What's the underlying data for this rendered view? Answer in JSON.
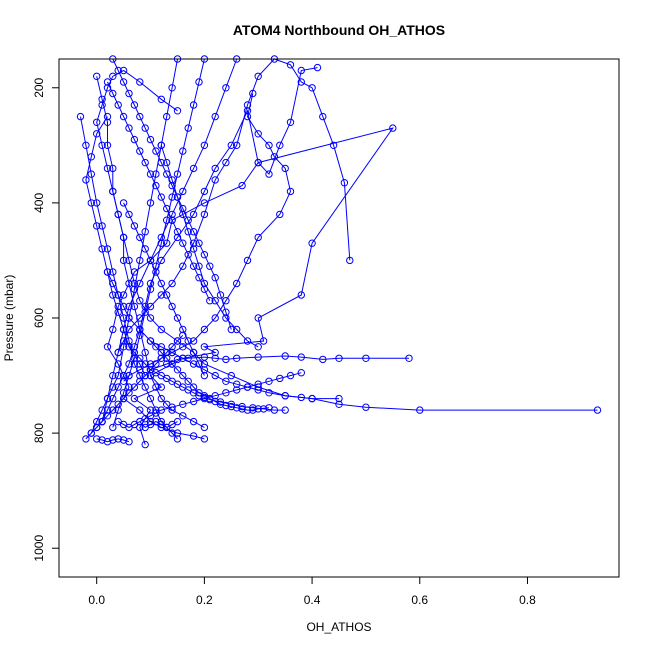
{
  "chart_data": {
    "type": "line",
    "title": "ATOM4 Northbound OH_ATHOS",
    "xlabel": "OH_ATHOS",
    "ylabel": "Pressure (mbar)",
    "xlim": [
      -0.07,
      0.97
    ],
    "ylim": [
      1050,
      150
    ],
    "y_reversed": true,
    "x_ticks": [
      0.0,
      0.2,
      0.4,
      0.6,
      0.8
    ],
    "x_tick_labels": [
      "0.0",
      "0.2",
      "0.4",
      "0.6",
      "0.8"
    ],
    "y_ticks": [
      200,
      400,
      600,
      800,
      1000
    ],
    "y_tick_labels": [
      "200",
      "400",
      "600",
      "800",
      "1000"
    ],
    "grid": false,
    "legend": "none",
    "series_color": "#0000ff",
    "marker": "open-circle",
    "series": [
      {
        "x": [
          0.09,
          0.08,
          0.1,
          0.07,
          0.12,
          0.1,
          0.14,
          0.16,
          0.22,
          0.2,
          0.31,
          0.3,
          0.38,
          0.4,
          0.55,
          0.3,
          0.27,
          0.2,
          0.14,
          0.13,
          0.1,
          0.07,
          0.05,
          0.04,
          0.03,
          0.02,
          0.04,
          0.05,
          0.06,
          0.05,
          0.08,
          0.1,
          0.12,
          0.15,
          0.18,
          0.2
        ],
        "y": [
          820,
          790,
          760,
          740,
          720,
          700,
          680,
          670,
          660,
          650,
          640,
          600,
          560,
          470,
          270,
          330,
          370,
          400,
          430,
          470,
          500,
          520,
          560,
          580,
          620,
          650,
          680,
          700,
          720,
          740,
          760,
          780,
          790,
          800,
          805,
          810
        ]
      },
      {
        "x": [
          0.93,
          0.6,
          0.5,
          0.45,
          0.4,
          0.35,
          0.3,
          0.25,
          0.2,
          0.18,
          0.15,
          0.12,
          0.1,
          0.08,
          0.07,
          0.06,
          0.05,
          0.04,
          0.03,
          0.02,
          0.01,
          0.0,
          0.01,
          0.02,
          0.03,
          0.05,
          0.08,
          0.12,
          0.15
        ],
        "y": [
          760,
          760,
          755,
          750,
          740,
          735,
          720,
          700,
          680,
          660,
          640,
          620,
          600,
          570,
          540,
          500,
          460,
          420,
          380,
          340,
          300,
          260,
          230,
          200,
          180,
          170,
          190,
          220,
          240
        ]
      },
      {
        "x": [
          0.58,
          0.5,
          0.45,
          0.42,
          0.38,
          0.35,
          0.3,
          0.26,
          0.24,
          0.22,
          0.2,
          0.17,
          0.15,
          0.13,
          0.1,
          0.09,
          0.08,
          0.06,
          0.05,
          0.04,
          0.03,
          0.02,
          0.01,
          0.0,
          -0.01,
          -0.02,
          -0.01,
          0.0,
          0.02
        ],
        "y": [
          670,
          670,
          670,
          672,
          668,
          666,
          668,
          670,
          672,
          670,
          668,
          670,
          672,
          680,
          690,
          700,
          680,
          650,
          620,
          590,
          560,
          520,
          480,
          440,
          400,
          360,
          320,
          280,
          250
        ]
      },
      {
        "x": [
          0.45,
          0.4,
          0.38,
          0.35,
          0.32,
          0.3,
          0.28,
          0.26,
          0.24,
          0.22,
          0.2,
          0.18,
          0.16,
          0.14,
          0.12,
          0.1,
          0.08,
          0.06,
          0.05,
          0.04,
          0.03,
          0.02
        ],
        "y": [
          740,
          740,
          738,
          735,
          730,
          725,
          720,
          715,
          710,
          700,
          690,
          680,
          670,
          660,
          650,
          640,
          620,
          600,
          580,
          560,
          540,
          520
        ]
      },
      {
        "x": [
          0.47,
          0.46,
          0.44,
          0.42,
          0.4,
          0.38,
          0.36,
          0.33,
          0.3,
          0.28,
          0.26,
          0.24,
          0.22,
          0.2,
          0.18,
          0.16,
          0.14,
          0.12,
          0.1,
          0.08,
          0.06,
          0.05,
          0.04
        ],
        "y": [
          500,
          365,
          300,
          250,
          200,
          190,
          160,
          150,
          180,
          230,
          300,
          330,
          360,
          420,
          470,
          510,
          540,
          560,
          580,
          600,
          620,
          640,
          660
        ]
      },
      {
        "x": [
          0.41,
          0.38,
          0.36,
          0.34,
          0.32,
          0.3,
          0.28,
          0.25,
          0.22,
          0.2,
          0.18,
          0.15,
          0.12,
          0.1,
          0.09,
          0.08,
          0.07,
          0.06,
          0.05,
          0.04,
          0.03,
          0.02,
          0.01,
          0.0
        ],
        "y": [
          165,
          170,
          260,
          300,
          350,
          330,
          240,
          300,
          340,
          380,
          420,
          460,
          500,
          540,
          580,
          620,
          650,
          680,
          700,
          720,
          740,
          760,
          780,
          790
        ]
      },
      {
        "x": [
          0.29,
          0.28,
          0.3,
          0.32,
          0.33,
          0.35,
          0.36,
          0.34,
          0.3,
          0.28,
          0.26,
          0.24,
          0.22,
          0.2,
          0.18,
          0.16,
          0.14,
          0.12,
          0.1,
          0.08,
          0.06,
          0.05
        ],
        "y": [
          210,
          250,
          280,
          300,
          320,
          340,
          380,
          420,
          460,
          500,
          540,
          570,
          600,
          620,
          640,
          650,
          660,
          670,
          680,
          690,
          700,
          710
        ]
      },
      {
        "x": [
          0.35,
          0.33,
          0.31,
          0.29,
          0.27,
          0.25,
          0.23,
          0.21,
          0.2,
          0.19,
          0.18,
          0.17,
          0.16,
          0.15,
          0.14,
          0.13,
          0.12,
          0.11,
          0.1,
          0.09,
          0.08,
          0.07,
          0.06
        ],
        "y": [
          760,
          760,
          758,
          756,
          754,
          750,
          746,
          742,
          738,
          735,
          730,
          725,
          720,
          715,
          710,
          705,
          700,
          695,
          690,
          680,
          670,
          660,
          650
        ]
      },
      {
        "x": [
          0.03,
          0.04,
          0.05,
          0.06,
          0.07,
          0.08,
          0.09,
          0.1,
          0.11,
          0.12,
          0.13,
          0.14,
          0.15,
          0.16,
          0.17,
          0.18,
          0.19,
          0.2,
          0.21,
          0.22,
          0.23,
          0.24,
          0.25
        ],
        "y": [
          150,
          170,
          190,
          210,
          230,
          250,
          270,
          290,
          310,
          330,
          350,
          370,
          390,
          410,
          430,
          450,
          470,
          490,
          510,
          530,
          560,
          590,
          620
        ]
      },
      {
        "x": [
          0.1,
          0.11,
          0.12,
          0.13,
          0.14,
          0.15,
          0.16,
          0.17,
          0.18,
          0.19,
          0.2,
          0.21,
          0.22,
          0.23,
          0.24,
          0.25,
          0.26,
          0.27,
          0.28,
          0.29,
          0.3,
          0.32
        ],
        "y": [
          640,
          650,
          660,
          670,
          680,
          690,
          700,
          710,
          720,
          730,
          735,
          740,
          745,
          750,
          752,
          754,
          756,
          758,
          760,
          760,
          758,
          756
        ]
      },
      {
        "x": [
          -0.03,
          -0.02,
          -0.01,
          0.0,
          0.01,
          0.02,
          0.03,
          0.04,
          0.05,
          0.06,
          0.07,
          0.08,
          0.09,
          0.1,
          0.11,
          0.12,
          0.13,
          0.14,
          0.15
        ],
        "y": [
          250,
          300,
          350,
          400,
          440,
          480,
          520,
          560,
          600,
          640,
          680,
          700,
          720,
          740,
          760,
          780,
          790,
          800,
          810
        ]
      },
      {
        "x": [
          -0.02,
          -0.01,
          0.0,
          0.01,
          0.02,
          0.03,
          0.04,
          0.05,
          0.06,
          0.07,
          0.08,
          0.09,
          0.1,
          0.11,
          0.12,
          0.13,
          0.14,
          0.15,
          0.16
        ],
        "y": [
          810,
          800,
          790,
          780,
          770,
          760,
          750,
          740,
          730,
          720,
          710,
          700,
          690,
          680,
          670,
          660,
          650,
          640,
          630
        ]
      },
      {
        "x": [
          0.0,
          0.01,
          0.02,
          0.02,
          0.03,
          0.03,
          0.04,
          0.05,
          0.05,
          0.06,
          0.07,
          0.08,
          0.09,
          0.1,
          0.11,
          0.12,
          0.13,
          0.14,
          0.16,
          0.18,
          0.2
        ],
        "y": [
          180,
          220,
          260,
          300,
          340,
          380,
          420,
          460,
          500,
          540,
          580,
          620,
          660,
          700,
          720,
          740,
          750,
          760,
          770,
          780,
          790
        ]
      },
      {
        "x": [
          0.02,
          0.03,
          0.04,
          0.05,
          0.06,
          0.07,
          0.08,
          0.09,
          0.1,
          0.11,
          0.12,
          0.13,
          0.14,
          0.15,
          0.16,
          0.17,
          0.18,
          0.19,
          0.2,
          0.21
        ],
        "y": [
          190,
          210,
          230,
          250,
          270,
          290,
          310,
          330,
          350,
          370,
          390,
          410,
          430,
          450,
          470,
          490,
          510,
          530,
          550,
          570
        ]
      },
      {
        "x": [
          0.08,
          0.09,
          0.1,
          0.11,
          0.12,
          0.14,
          0.16,
          0.18,
          0.2,
          0.22,
          0.24,
          0.26,
          0.28,
          0.3,
          0.32,
          0.34,
          0.36,
          0.38
        ],
        "y": [
          780,
          775,
          770,
          765,
          760,
          755,
          750,
          745,
          740,
          735,
          730,
          725,
          720,
          715,
          710,
          705,
          700,
          695
        ]
      },
      {
        "x": [
          0.15,
          0.14,
          0.13,
          0.12,
          0.11,
          0.1,
          0.09,
          0.08,
          0.07,
          0.06,
          0.05,
          0.04,
          0.03,
          0.02,
          0.01,
          0.0,
          -0.01
        ],
        "y": [
          150,
          200,
          250,
          300,
          350,
          400,
          450,
          500,
          550,
          600,
          650,
          700,
          720,
          740,
          760,
          780,
          800
        ]
      },
      {
        "x": [
          0.2,
          0.19,
          0.18,
          0.17,
          0.16,
          0.15,
          0.14,
          0.13,
          0.12,
          0.11,
          0.1,
          0.09,
          0.08,
          0.07,
          0.06,
          0.05,
          0.04,
          0.03
        ],
        "y": [
          150,
          190,
          230,
          270,
          310,
          350,
          390,
          430,
          470,
          510,
          550,
          590,
          630,
          670,
          700,
          730,
          760,
          790
        ]
      },
      {
        "x": [
          0.26,
          0.24,
          0.22,
          0.2,
          0.18,
          0.16,
          0.14,
          0.12,
          0.1,
          0.08,
          0.06,
          0.05,
          0.04,
          0.03,
          0.02,
          0.01
        ],
        "y": [
          150,
          200,
          250,
          300,
          340,
          380,
          420,
          460,
          500,
          540,
          580,
          620,
          660,
          700,
          740,
          780
        ]
      },
      {
        "x": [
          0.12,
          0.13,
          0.14,
          0.15,
          0.16,
          0.17,
          0.18,
          0.19,
          0.2,
          0.22,
          0.24,
          0.26,
          0.28,
          0.3
        ],
        "y": [
          300,
          330,
          360,
          390,
          420,
          450,
          480,
          510,
          540,
          570,
          600,
          620,
          640,
          650
        ]
      },
      {
        "x": [
          0.05,
          0.06,
          0.07,
          0.08,
          0.09,
          0.1,
          0.11,
          0.12,
          0.13,
          0.14,
          0.15,
          0.16,
          0.17,
          0.18,
          0.19,
          0.2
        ],
        "y": [
          400,
          420,
          440,
          460,
          480,
          500,
          520,
          540,
          560,
          580,
          600,
          620,
          640,
          660,
          680,
          700
        ]
      },
      {
        "x": [
          0.04,
          0.05,
          0.06,
          0.07,
          0.08,
          0.09,
          0.1,
          0.11,
          0.12,
          0.13,
          0.14,
          0.15
        ],
        "y": [
          780,
          785,
          790,
          785,
          780,
          790,
          785,
          780,
          785,
          790,
          785,
          780
        ]
      },
      {
        "x": [
          0.0,
          0.01,
          0.02,
          0.03,
          0.04,
          0.05,
          0.06
        ],
        "y": [
          810,
          812,
          815,
          812,
          810,
          812,
          815
        ]
      }
    ]
  }
}
